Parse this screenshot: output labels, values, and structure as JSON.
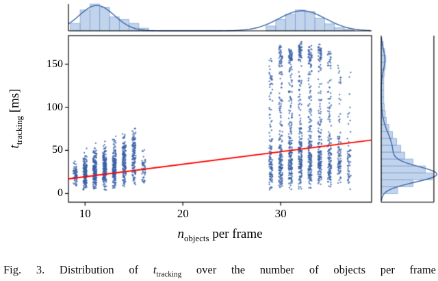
{
  "figure": {
    "xlabel": {
      "var": "n",
      "sub": "objects",
      "rest": " per frame"
    },
    "ylabel": {
      "var": "t",
      "sub": "tracking",
      "rest": " [ms]"
    },
    "caption": {
      "prefix": "Fig. 3. Distribution of ",
      "var": "t",
      "sub": "tracking",
      "suffix": " over the number of objects per frame"
    }
  },
  "chart_data": {
    "type": "scatter",
    "subtype": "jointplot-with-marginal-histograms",
    "x_axis": {
      "label": "n_objects per frame",
      "range": [
        8.3,
        39.3
      ],
      "ticks": [
        10,
        20,
        30
      ]
    },
    "y_axis": {
      "label": "t_tracking [ms]",
      "range": [
        -10,
        183
      ],
      "ticks": [
        0,
        50,
        100,
        150
      ]
    },
    "grid": false,
    "colors": {
      "dot": "#3a62a7",
      "hist_fill": "#adc6e5",
      "hist_edge": "#6b93c9",
      "density": "#3a62a7",
      "regression": "#ff0000",
      "axis": "#000000"
    },
    "regression_line": {
      "x": [
        8.3,
        39.3
      ],
      "y": [
        17,
        62
      ]
    },
    "strips": [
      {
        "x": 9,
        "n": 70,
        "min": 8,
        "max": 38,
        "clusters": [
          [
            22,
            8,
            1
          ]
        ]
      },
      {
        "x": 10,
        "n": 160,
        "min": 4,
        "max": 56,
        "clusters": [
          [
            24,
            11,
            1
          ]
        ]
      },
      {
        "x": 11,
        "n": 190,
        "min": 5,
        "max": 60,
        "clusters": [
          [
            27,
            12,
            1
          ]
        ]
      },
      {
        "x": 12,
        "n": 190,
        "min": 4,
        "max": 64,
        "clusters": [
          [
            29,
            13,
            1
          ]
        ]
      },
      {
        "x": 13,
        "n": 180,
        "min": 6,
        "max": 72,
        "clusters": [
          [
            32,
            14,
            1
          ]
        ]
      },
      {
        "x": 14,
        "n": 150,
        "min": 8,
        "max": 80,
        "clusters": [
          [
            35,
            15,
            1
          ]
        ]
      },
      {
        "x": 15,
        "n": 130,
        "min": 10,
        "max": 92,
        "clusters": [
          [
            42,
            17,
            1
          ]
        ]
      },
      {
        "x": 16,
        "n": 45,
        "min": 12,
        "max": 58,
        "clusters": [
          [
            32,
            11,
            1
          ]
        ]
      },
      {
        "x": 29,
        "n": 140,
        "min": 4,
        "max": 158,
        "clusters": [
          [
            30,
            14,
            0.6
          ],
          [
            80,
            40,
            0.3
          ],
          [
            140,
            10,
            0.1
          ]
        ]
      },
      {
        "x": 30,
        "n": 200,
        "min": 5,
        "max": 172,
        "clusters": [
          [
            32,
            15,
            0.5
          ],
          [
            90,
            45,
            0.3
          ],
          [
            160,
            8,
            0.2
          ]
        ]
      },
      {
        "x": 31,
        "n": 230,
        "min": 4,
        "max": 168,
        "clusters": [
          [
            34,
            15,
            0.5
          ],
          [
            90,
            45,
            0.3
          ],
          [
            155,
            8,
            0.2
          ]
        ]
      },
      {
        "x": 32,
        "n": 230,
        "min": 5,
        "max": 176,
        "clusters": [
          [
            35,
            16,
            0.5
          ],
          [
            95,
            45,
            0.3
          ],
          [
            165,
            8,
            0.2
          ]
        ]
      },
      {
        "x": 33,
        "n": 220,
        "min": 4,
        "max": 172,
        "clusters": [
          [
            35,
            16,
            0.5
          ],
          [
            95,
            45,
            0.3
          ],
          [
            160,
            8,
            0.2
          ]
        ]
      },
      {
        "x": 34,
        "n": 190,
        "min": 8,
        "max": 173,
        "clusters": [
          [
            36,
            16,
            0.55
          ],
          [
            95,
            45,
            0.3
          ],
          [
            162,
            8,
            0.15
          ]
        ]
      },
      {
        "x": 35,
        "n": 150,
        "min": 6,
        "max": 168,
        "clusters": [
          [
            36,
            15,
            0.55
          ],
          [
            90,
            45,
            0.3
          ],
          [
            155,
            8,
            0.15
          ]
        ]
      },
      {
        "x": 36,
        "n": 90,
        "min": 10,
        "max": 150,
        "clusters": [
          [
            35,
            15,
            0.6
          ],
          [
            85,
            40,
            0.3
          ],
          [
            140,
            8,
            0.1
          ]
        ]
      },
      {
        "x": 37,
        "n": 55,
        "min": 4,
        "max": 145,
        "clusters": [
          [
            32,
            14,
            0.65
          ],
          [
            80,
            40,
            0.35
          ]
        ]
      }
    ],
    "top_marginal": {
      "bin_width": 1,
      "bars": [
        [
          9,
          0.28
        ],
        [
          10,
          0.78
        ],
        [
          11,
          1.0
        ],
        [
          12,
          0.88
        ],
        [
          13,
          0.52
        ],
        [
          14,
          0.42
        ],
        [
          15,
          0.28
        ],
        [
          16,
          0.1
        ],
        [
          29,
          0.18
        ],
        [
          30,
          0.42
        ],
        [
          31,
          0.62
        ],
        [
          32,
          0.78
        ],
        [
          33,
          0.72
        ],
        [
          34,
          0.48
        ],
        [
          35,
          0.26
        ],
        [
          36,
          0.12
        ],
        [
          37,
          0.06
        ]
      ],
      "density": [
        [
          11.2,
          1.8,
          0.95
        ],
        [
          32.2,
          2.4,
          0.75
        ]
      ]
    },
    "right_marginal": {
      "bin_width": 8,
      "bars": [
        [
          0,
          0.32
        ],
        [
          8,
          0.62
        ],
        [
          16,
          1.0
        ],
        [
          24,
          0.86
        ],
        [
          32,
          0.62
        ],
        [
          40,
          0.46
        ],
        [
          48,
          0.38
        ],
        [
          56,
          0.3
        ],
        [
          64,
          0.22
        ],
        [
          72,
          0.15
        ],
        [
          80,
          0.1
        ],
        [
          88,
          0.08
        ],
        [
          96,
          0.06
        ],
        [
          104,
          0.05
        ],
        [
          112,
          0.05
        ],
        [
          120,
          0.05
        ],
        [
          128,
          0.05
        ],
        [
          136,
          0.06
        ],
        [
          144,
          0.08
        ],
        [
          152,
          0.09
        ],
        [
          160,
          0.07
        ],
        [
          168,
          0.04
        ]
      ],
      "density": [
        [
          22,
          9,
          1.0
        ],
        [
          50,
          20,
          0.22
        ],
        [
          155,
          12,
          0.07
        ]
      ]
    }
  }
}
